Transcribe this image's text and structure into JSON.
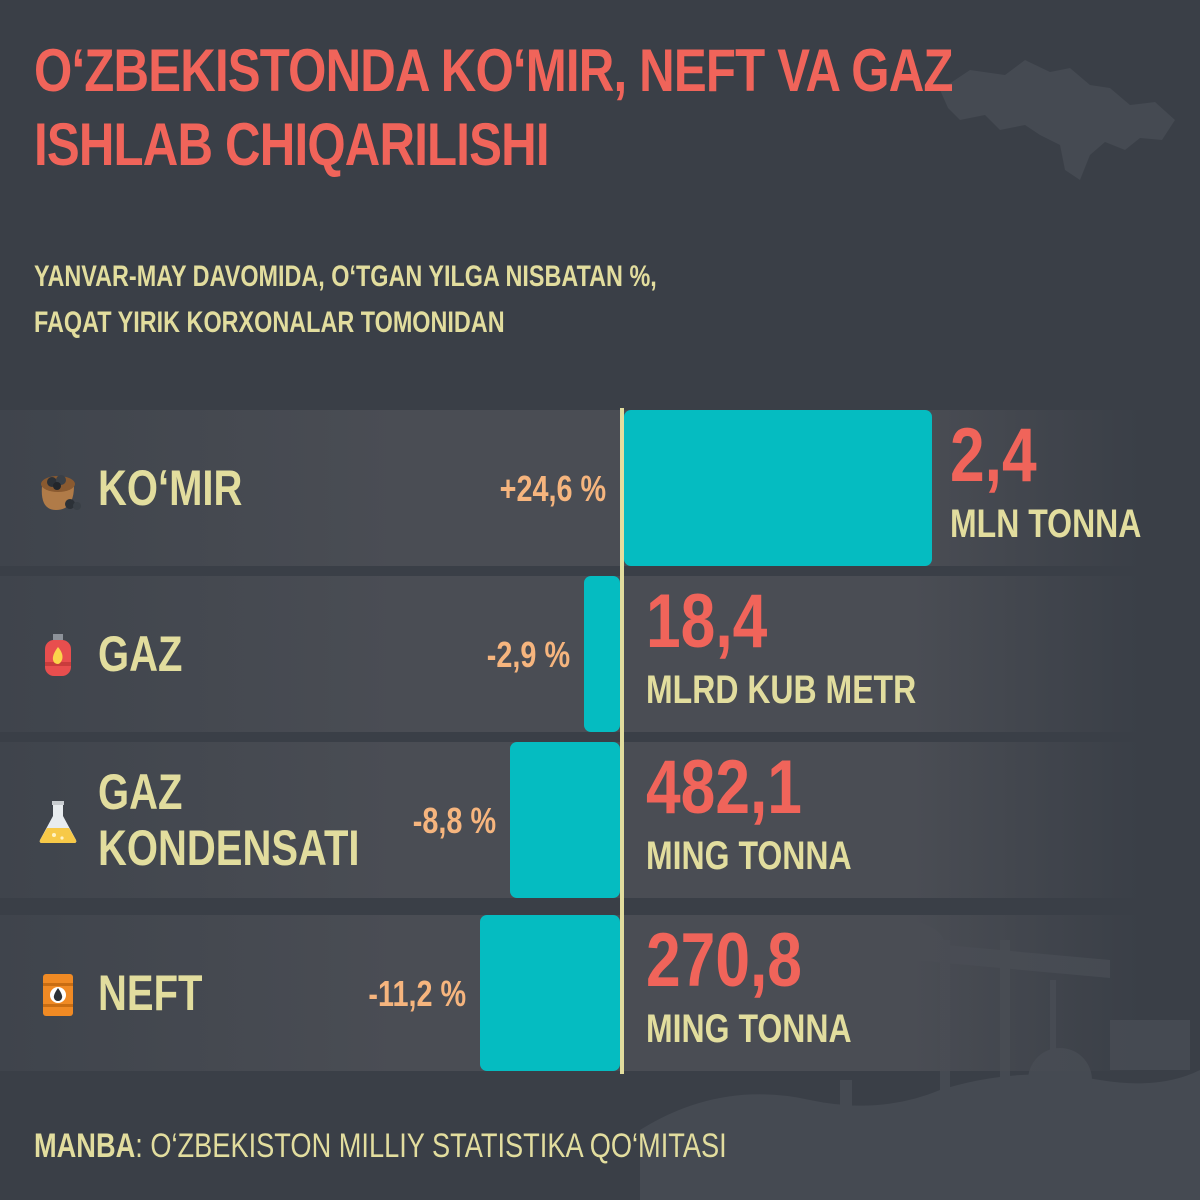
{
  "header": {
    "title": "O‘ZBEKISTONDA KO‘MIR, NEFT VA GAZ ISHLAB CHIQARILISHI",
    "subtitle_line1": "YANVAR-MAY DAVOMIDA, O‘TGAN YILGA NISBATAN %,",
    "subtitle_line2": "FAQAT YIRIK KORXONALAR TOMONIDAN"
  },
  "chart_data": {
    "type": "bar",
    "orientation": "horizontal-diverging",
    "categories": [
      "KO‘MIR",
      "GAZ",
      "GAZ KONDENSATI",
      "NEFT"
    ],
    "category_lines": [
      [
        "KO‘MIR"
      ],
      [
        "GAZ"
      ],
      [
        "GAZ",
        "KONDENSATI"
      ],
      [
        "NEFT"
      ]
    ],
    "values": [
      24.6,
      -2.9,
      -8.8,
      -11.2
    ],
    "value_labels": [
      "+24,6 %",
      "-2,9 %",
      "-8,8 %",
      "-11,2 %"
    ],
    "volumes": [
      "2,4",
      "18,4",
      "482,1",
      "270,8"
    ],
    "units": [
      "MLN TONNA",
      "MLRD KUB METR",
      "MING TONNA",
      "MING TONNA"
    ],
    "icons": [
      "coal-sack-icon",
      "gas-cylinder-icon",
      "flask-icon",
      "oil-barrel-icon"
    ],
    "colors": {
      "bar": "#05bcc1",
      "value": "#f0645a",
      "label": "#e2dd9e",
      "percent": "#f6b57e",
      "axis": "#e2dd9e"
    }
  },
  "footer": {
    "source_label": "MANBA",
    "source_text": ": O‘ZBEKISTON MILLIY STATISTIKA QO‘MITASI"
  }
}
